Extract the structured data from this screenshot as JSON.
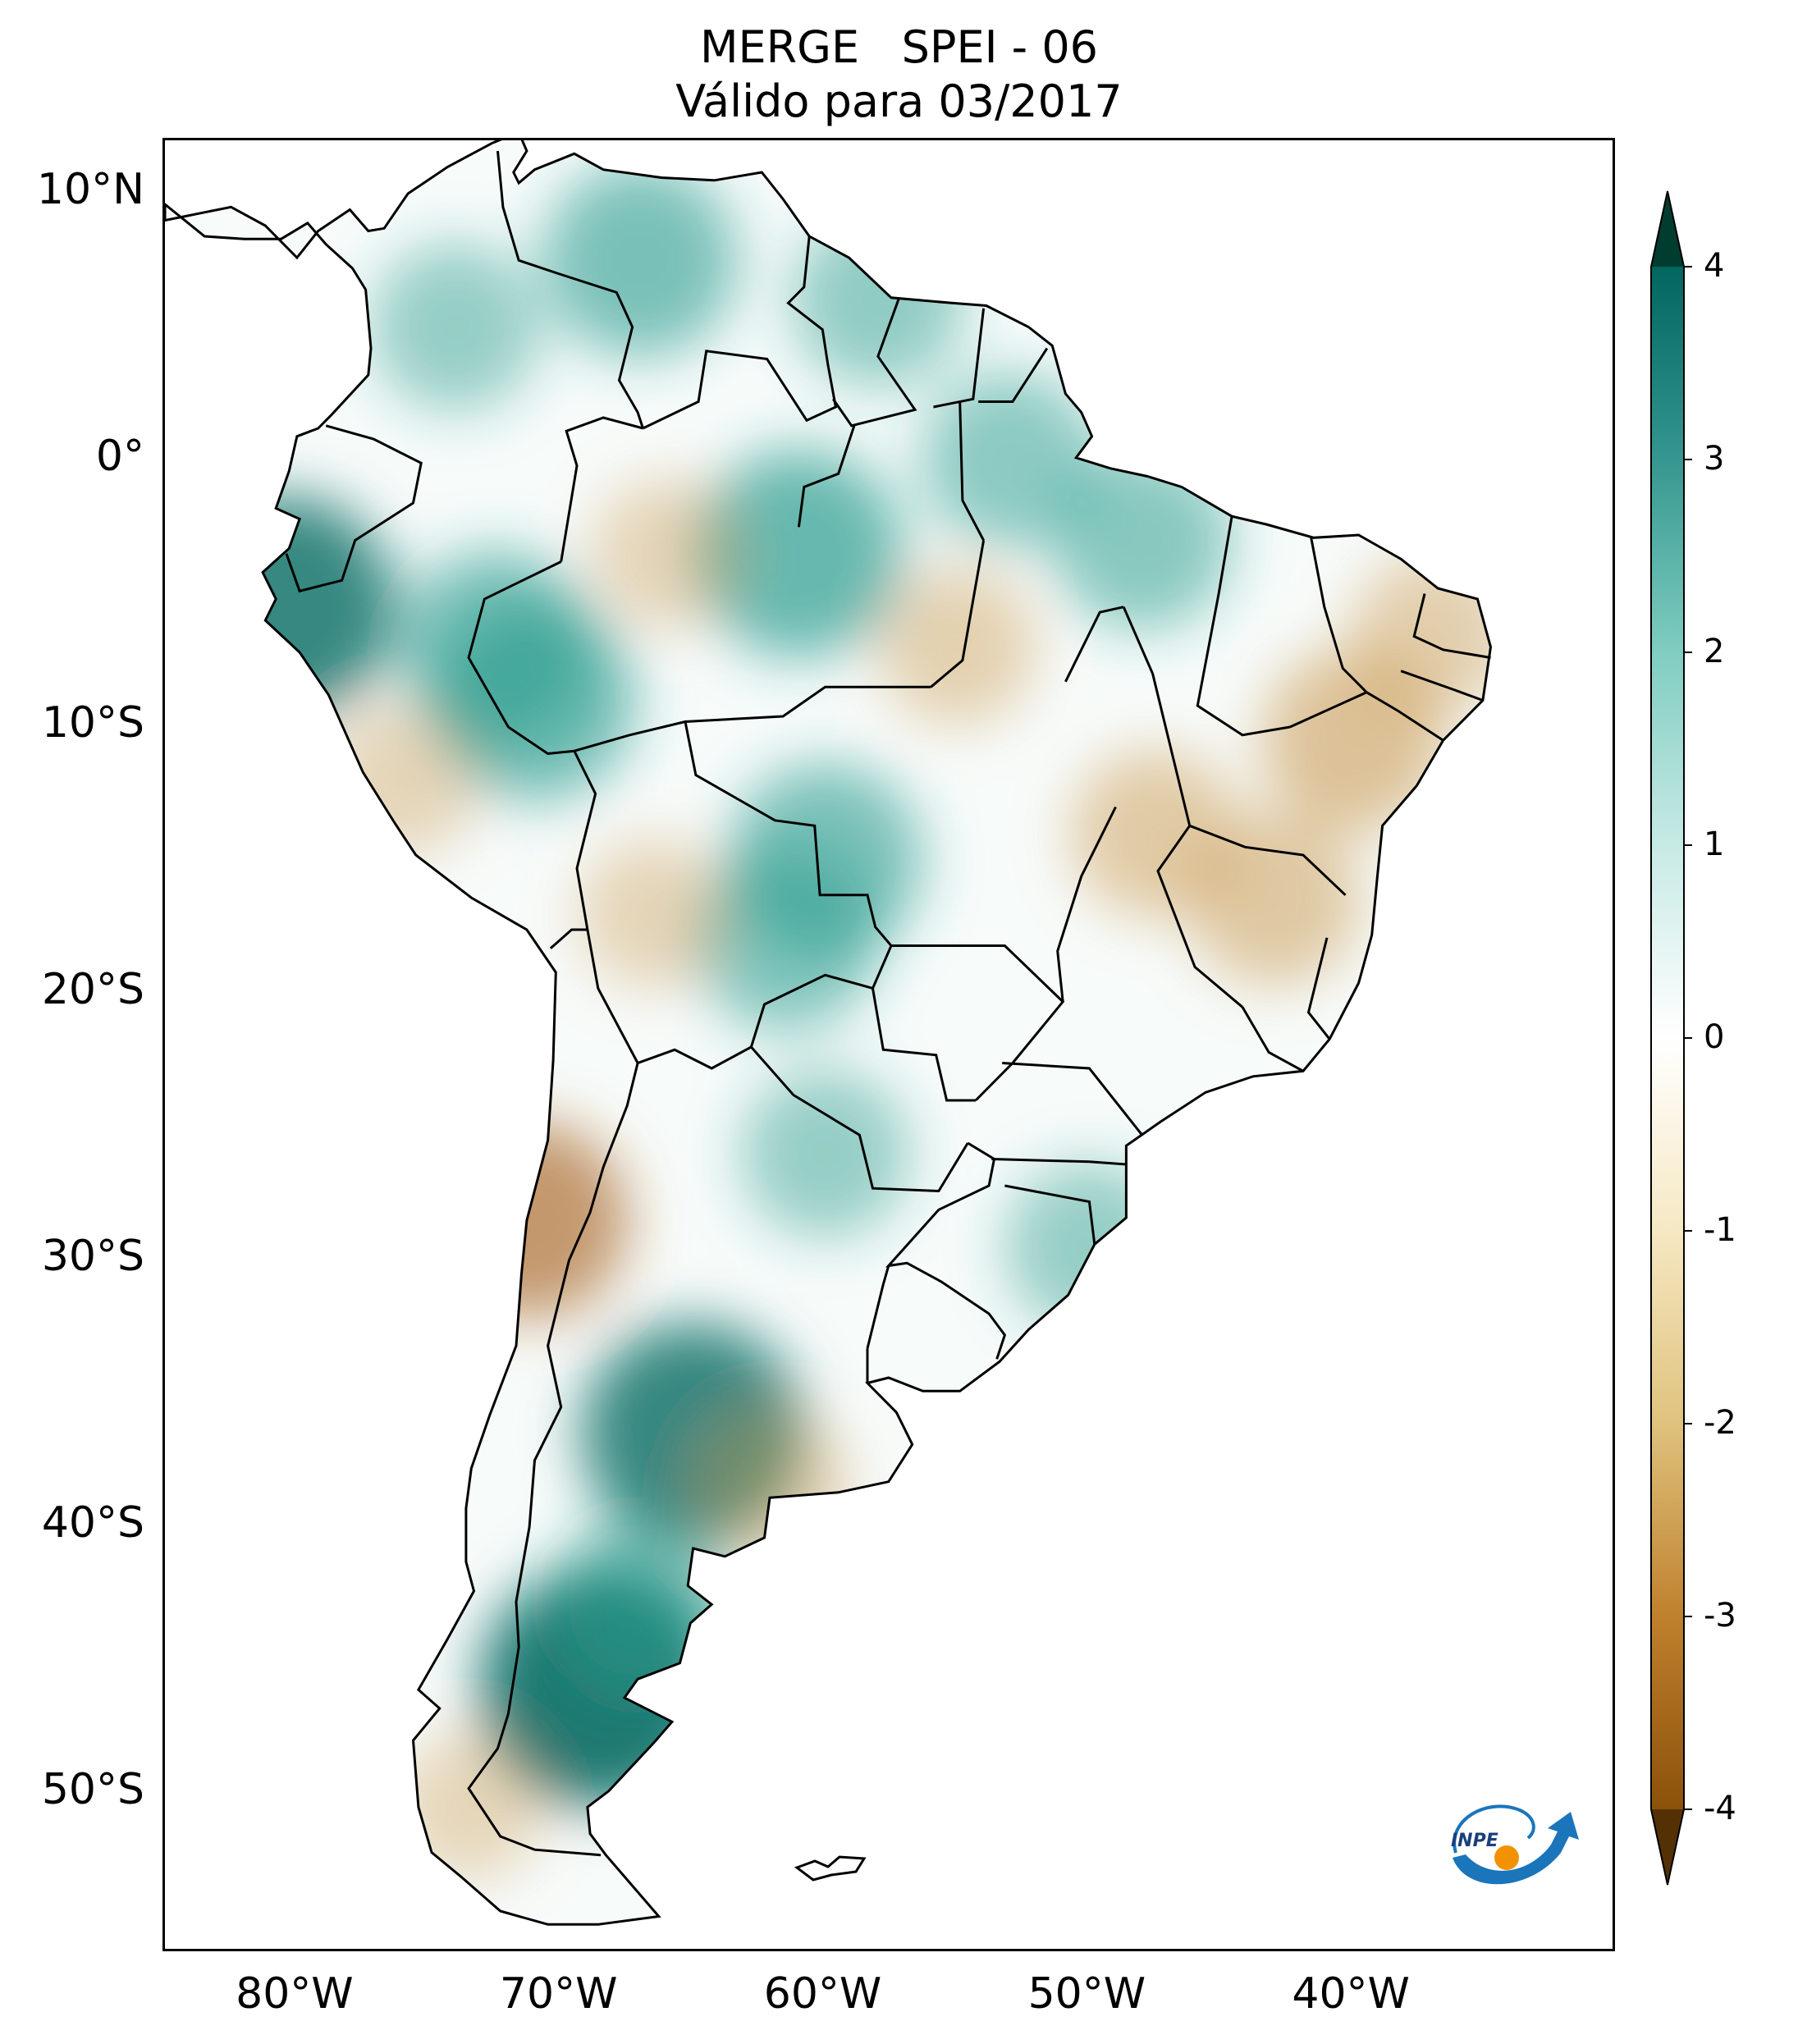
{
  "title": {
    "line1": "MERGE   SPEI - 06",
    "line2": "Válido para 03/2017"
  },
  "map": {
    "lon_range": [
      -85,
      -30
    ],
    "lat_range": [
      -56,
      12
    ],
    "lat_ticks": [
      {
        "value": 10,
        "label": "10°N"
      },
      {
        "value": 0,
        "label": "0°"
      },
      {
        "value": -10,
        "label": "10°S"
      },
      {
        "value": -20,
        "label": "20°S"
      },
      {
        "value": -30,
        "label": "30°S"
      },
      {
        "value": -40,
        "label": "40°S"
      },
      {
        "value": -50,
        "label": "50°S"
      }
    ],
    "lon_ticks": [
      {
        "value": -80,
        "label": "80°W"
      },
      {
        "value": -70,
        "label": "70°W"
      },
      {
        "value": -60,
        "label": "60°W"
      },
      {
        "value": -50,
        "label": "50°W"
      },
      {
        "value": -40,
        "label": "40°W"
      }
    ],
    "outline_color": "#000000",
    "wet_color": "#2a9d8f",
    "dry_color": "#c8964a",
    "regions": [
      {
        "lon": -67,
        "lat": 7.5,
        "level": 2.2
      },
      {
        "lon": -74,
        "lat": 5,
        "level": 1.5
      },
      {
        "lon": -58,
        "lat": 6,
        "level": 1.6
      },
      {
        "lon": -61,
        "lat": -3.5,
        "level": 2.6
      },
      {
        "lon": -53,
        "lat": 0,
        "level": 1.7
      },
      {
        "lon": -48,
        "lat": -3,
        "level": 1.8
      },
      {
        "lon": -80.5,
        "lat": -5.5,
        "level": 3.0
      },
      {
        "lon": -72.5,
        "lat": -7,
        "level": 2.2
      },
      {
        "lon": -71,
        "lat": -9,
        "level": 2.4
      },
      {
        "lon": -60,
        "lat": -15,
        "level": 2.2
      },
      {
        "lon": -61.5,
        "lat": -18,
        "level": 1.9
      },
      {
        "lon": -60,
        "lat": -26,
        "level": 1.5
      },
      {
        "lon": -50,
        "lat": -29.5,
        "level": 1.5
      },
      {
        "lon": -65,
        "lat": -36.5,
        "level": 3.0
      },
      {
        "lon": -68.5,
        "lat": -46,
        "level": 3.5
      },
      {
        "lon": -67,
        "lat": -43,
        "level": 1.8
      },
      {
        "lon": -40,
        "lat": -10.5,
        "level": -1.9
      },
      {
        "lon": -43,
        "lat": -16.5,
        "level": -1.6
      },
      {
        "lon": -47.5,
        "lat": -14,
        "level": -1.5
      },
      {
        "lon": -37,
        "lat": -6.5,
        "level": -1.3
      },
      {
        "lon": -66,
        "lat": -3.5,
        "level": -1.0
      },
      {
        "lon": -55,
        "lat": -7,
        "level": -1.2
      },
      {
        "lon": -76,
        "lat": -12,
        "level": -1.0
      },
      {
        "lon": -71.2,
        "lat": -28.5,
        "level": -2.3
      },
      {
        "lon": -66.5,
        "lat": -17,
        "level": -1.0
      },
      {
        "lon": -62,
        "lat": -38.5,
        "level": -1.1
      },
      {
        "lon": -73.5,
        "lat": -50.5,
        "level": -0.9
      }
    ]
  },
  "colorbar": {
    "min": -4,
    "max": 4,
    "extend": "both",
    "ticks": [
      {
        "value": 4,
        "label": "4"
      },
      {
        "value": 3,
        "label": "3"
      },
      {
        "value": 2,
        "label": "2"
      },
      {
        "value": 1,
        "label": "1"
      },
      {
        "value": 0,
        "label": "0"
      },
      {
        "value": -1,
        "label": "-1"
      },
      {
        "value": -2,
        "label": "-2"
      },
      {
        "value": -3,
        "label": "-3"
      },
      {
        "value": -4,
        "label": "-4"
      }
    ],
    "colors": [
      "#543005",
      "#8c510a",
      "#bf812d",
      "#dfc27d",
      "#f6e8c3",
      "#ffffff",
      "#c7eae5",
      "#80cdc1",
      "#35978f",
      "#01665e",
      "#003c30"
    ]
  },
  "logo": {
    "text": "INPE",
    "blue": "#1a75bb",
    "orange": "#f39200"
  }
}
